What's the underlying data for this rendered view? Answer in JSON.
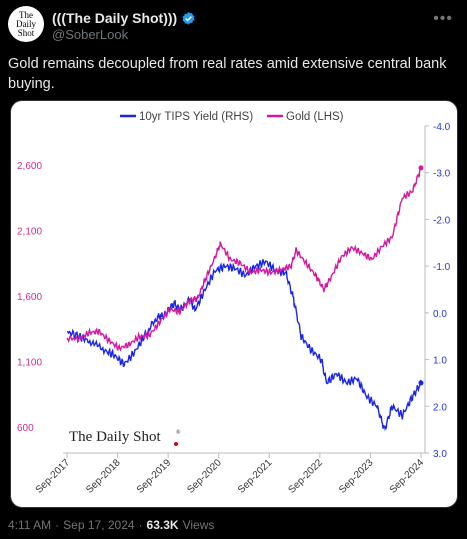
{
  "tweet": {
    "avatar_lines": [
      "The",
      "Daily",
      "Shot"
    ],
    "display_name": "(((The Daily Shot)))",
    "handle": "@SoberLook",
    "more_icon": "more-icon",
    "text": "Gold remains decoupled from real rates amid extensive central bank buying.",
    "time": "4:11 AM",
    "date": "Sep 17, 2024",
    "views_count": "63.3K",
    "views_label": "Views",
    "separator": "·"
  },
  "chart_data": {
    "type": "line",
    "watermark": "The Daily Shot",
    "watermark_mark": "®",
    "x_ticks": [
      "Sep-2017",
      "Sep-2018",
      "Sep-2019",
      "Sep-2020",
      "Sep-2021",
      "Sep-2022",
      "Sep-2023",
      "Sep-2024"
    ],
    "left_axis": {
      "ticks": [
        "600",
        "1,100",
        "1,600",
        "2,100",
        "2,600"
      ],
      "range": [
        400,
        2900
      ],
      "color": "#cc2a9c"
    },
    "right_axis": {
      "ticks": [
        "-4.0",
        "-3.0",
        "-2.0",
        "-1.0",
        "0.0",
        "1.0",
        "2.0",
        "3.0"
      ],
      "range": [
        3.0,
        -4.0
      ],
      "inverted": true,
      "color": "#2436e0"
    },
    "series": [
      {
        "name": "10yr TIPS Yield (RHS)",
        "axis": "right",
        "color": "#1a26e6",
        "x": [
          2017.67,
          2017.9,
          2018.1,
          2018.4,
          2018.6,
          2018.8,
          2019.0,
          2019.2,
          2019.45,
          2019.6,
          2019.7,
          2019.8,
          2019.9,
          2020.1,
          2020.2,
          2020.4,
          2020.6,
          2020.8,
          2021.0,
          2021.2,
          2021.4,
          2021.6,
          2021.8,
          2022.0,
          2022.15,
          2022.3,
          2022.5,
          2022.7,
          2022.8,
          2023.0,
          2023.2,
          2023.4,
          2023.6,
          2023.8,
          2023.95,
          2024.1,
          2024.3,
          2024.5,
          2024.67
        ],
        "values": [
          0.4,
          0.5,
          0.6,
          0.8,
          0.9,
          1.1,
          0.85,
          0.5,
          0.1,
          0.05,
          -0.1,
          -0.2,
          -0.05,
          -0.3,
          -0.05,
          -0.5,
          -0.9,
          -1.0,
          -0.95,
          -0.8,
          -1.0,
          -1.1,
          -0.9,
          -0.85,
          -0.3,
          0.5,
          0.8,
          1.0,
          1.5,
          1.3,
          1.5,
          1.4,
          1.8,
          2.0,
          2.5,
          2.0,
          2.2,
          1.8,
          1.5
        ]
      },
      {
        "name": "Gold (LHS)",
        "axis": "left",
        "color": "#d11aa0",
        "x": [
          2017.67,
          2017.9,
          2018.1,
          2018.3,
          2018.5,
          2018.7,
          2018.9,
          2019.1,
          2019.3,
          2019.5,
          2019.7,
          2019.9,
          2020.1,
          2020.25,
          2020.4,
          2020.6,
          2020.7,
          2020.9,
          2021.1,
          2021.3,
          2021.5,
          2021.7,
          2021.9,
          2022.1,
          2022.2,
          2022.4,
          2022.6,
          2022.75,
          2022.9,
          2023.1,
          2023.3,
          2023.5,
          2023.7,
          2023.9,
          2024.1,
          2024.3,
          2024.5,
          2024.67
        ],
        "values": [
          1280,
          1270,
          1320,
          1330,
          1260,
          1200,
          1230,
          1290,
          1300,
          1400,
          1500,
          1480,
          1570,
          1580,
          1720,
          1900,
          2000,
          1880,
          1850,
          1780,
          1800,
          1780,
          1800,
          1830,
          1950,
          1850,
          1750,
          1650,
          1750,
          1900,
          1970,
          1930,
          1880,
          1980,
          2050,
          2350,
          2400,
          2580
        ]
      }
    ],
    "grid": false,
    "legend_placement": "top-center"
  }
}
